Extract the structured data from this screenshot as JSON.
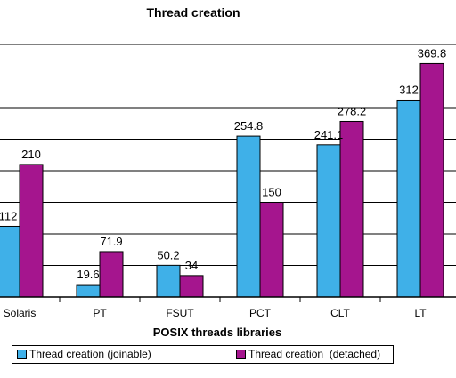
{
  "chart_data": {
    "type": "bar",
    "title": "Thread creation",
    "xlabel": "POSIX threads libraries",
    "ylabel": "",
    "categories": [
      "Solaris",
      "PT",
      "FSUT",
      "PCT",
      "CLT",
      "LT"
    ],
    "series": [
      {
        "name": "Thread creation (joinable)",
        "values": [
          112,
          19.6,
          50.2,
          254.8,
          241.1,
          312
        ],
        "color": "#3FB0E8"
      },
      {
        "name": "Thread creation  (detached)",
        "values": [
          210,
          71.9,
          34,
          150,
          278.2,
          369.8
        ],
        "color": "#A5158E"
      }
    ],
    "data_labels": [
      [
        "112",
        "19.6",
        "50.2",
        "254.8",
        "241.1",
        "312"
      ],
      [
        "210",
        "71.9",
        "34",
        "150",
        "278.2",
        "369.8"
      ]
    ],
    "grid": true,
    "legend_position": "bottom"
  }
}
